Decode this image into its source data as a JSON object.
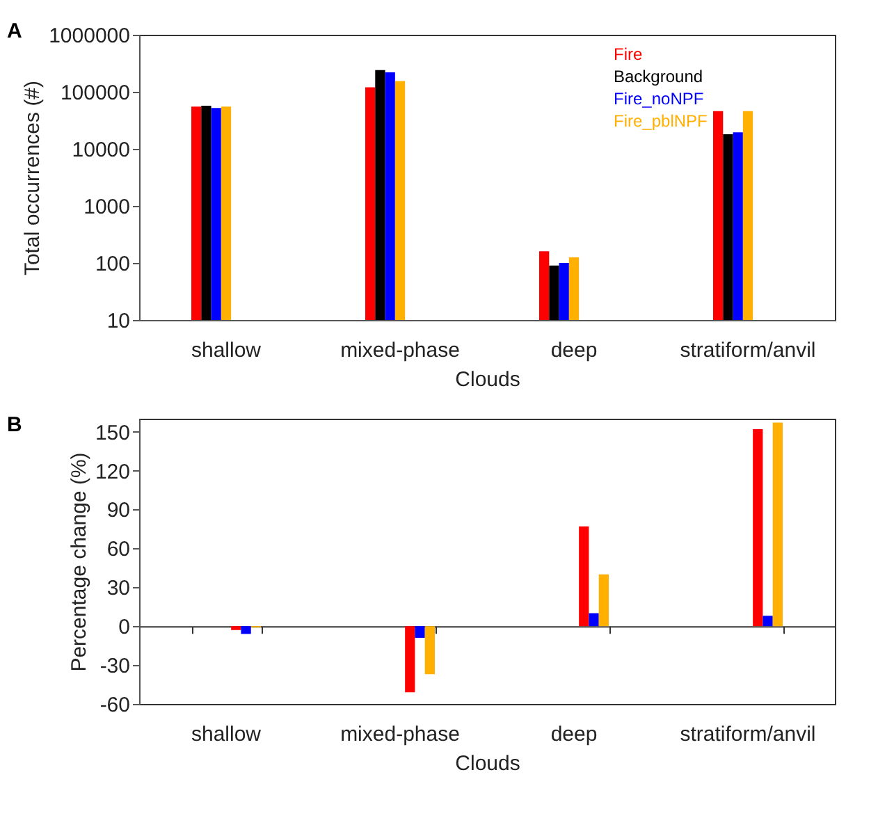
{
  "chart_data": [
    {
      "type": "bar",
      "title": "A",
      "xlabel": "Clouds",
      "ylabel": "Total occurrences (#)",
      "log": "y",
      "legend": "top right",
      "categories": [
        "shallow",
        "mixed-phase",
        "deep",
        "stratiform/anvil"
      ],
      "ylim": [
        10,
        1000000
      ],
      "yticks": [
        10,
        100,
        1000,
        10000,
        100000,
        1000000
      ],
      "series": [
        {
          "name": "Fire",
          "color": "#ff0000",
          "values": [
            55000,
            120000,
            160,
            46000
          ]
        },
        {
          "name": "Background",
          "color": "#000000",
          "values": [
            57000,
            240000,
            90,
            18000
          ]
        },
        {
          "name": "Fire_noNPF",
          "color": "#0000ff",
          "values": [
            52000,
            220000,
            100,
            19500
          ]
        },
        {
          "name": "Fire_pblNPF",
          "color": "#ffb000",
          "values": [
            55000,
            155000,
            125,
            46000
          ]
        }
      ]
    },
    {
      "type": "bar",
      "title": "B",
      "xlabel": "Clouds",
      "ylabel": "Percentage change (%)",
      "categories": [
        "shallow",
        "mixed-phase",
        "deep",
        "stratiform/anvil"
      ],
      "ylim": [
        -60,
        160
      ],
      "yticks": [
        -60,
        -30,
        0,
        30,
        60,
        90,
        120,
        150
      ],
      "series": [
        {
          "color": "#ff0000",
          "values": [
            -3,
            -51,
            77,
            152
          ]
        },
        {
          "color": "#0000ff",
          "values": [
            -6,
            -9,
            10,
            8
          ]
        },
        {
          "color": "#ffb000",
          "values": [
            -1,
            -37,
            40,
            157
          ]
        }
      ]
    }
  ]
}
